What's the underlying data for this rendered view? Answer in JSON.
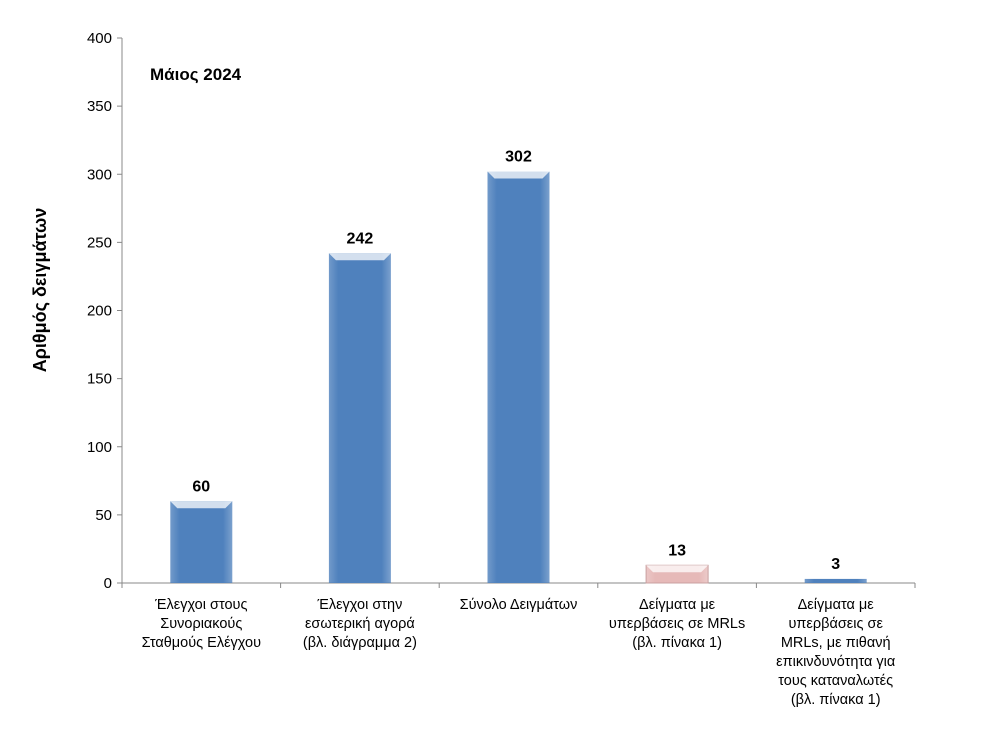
{
  "chart_data": {
    "type": "bar",
    "title": "Μάιος 2024",
    "ylabel": "Αριθμός δειγμάτων",
    "xlabel": "",
    "ylim": [
      0,
      400
    ],
    "yticks": [
      0,
      50,
      100,
      150,
      200,
      250,
      300,
      350,
      400
    ],
    "grid": false,
    "categories": [
      [
        "Έλεγχοι στους",
        "Συνοριακούς",
        "Σταθμούς Ελέγχου"
      ],
      [
        "Έλεγχοι στην",
        "εσωτερική αγορά",
        "(βλ. διάγραμμα 2)"
      ],
      [
        "Σύνολο Δειγμάτων"
      ],
      [
        "Δείγματα με",
        "υπερβάσεις σε MRLs",
        "(βλ. πίνακα 1)"
      ],
      [
        "Δείγματα με",
        "υπερβάσεις σε",
        "MRLs, με πιθανή",
        "επικινδυνότητα για",
        "τους καταναλωτές",
        "(βλ. πίνακα 1)"
      ]
    ],
    "values": [
      60,
      242,
      302,
      13,
      3
    ],
    "colors": [
      "#4f81bd",
      "#4f81bd",
      "#4f81bd",
      "#e6b9b8",
      "#4f81bd"
    ]
  }
}
